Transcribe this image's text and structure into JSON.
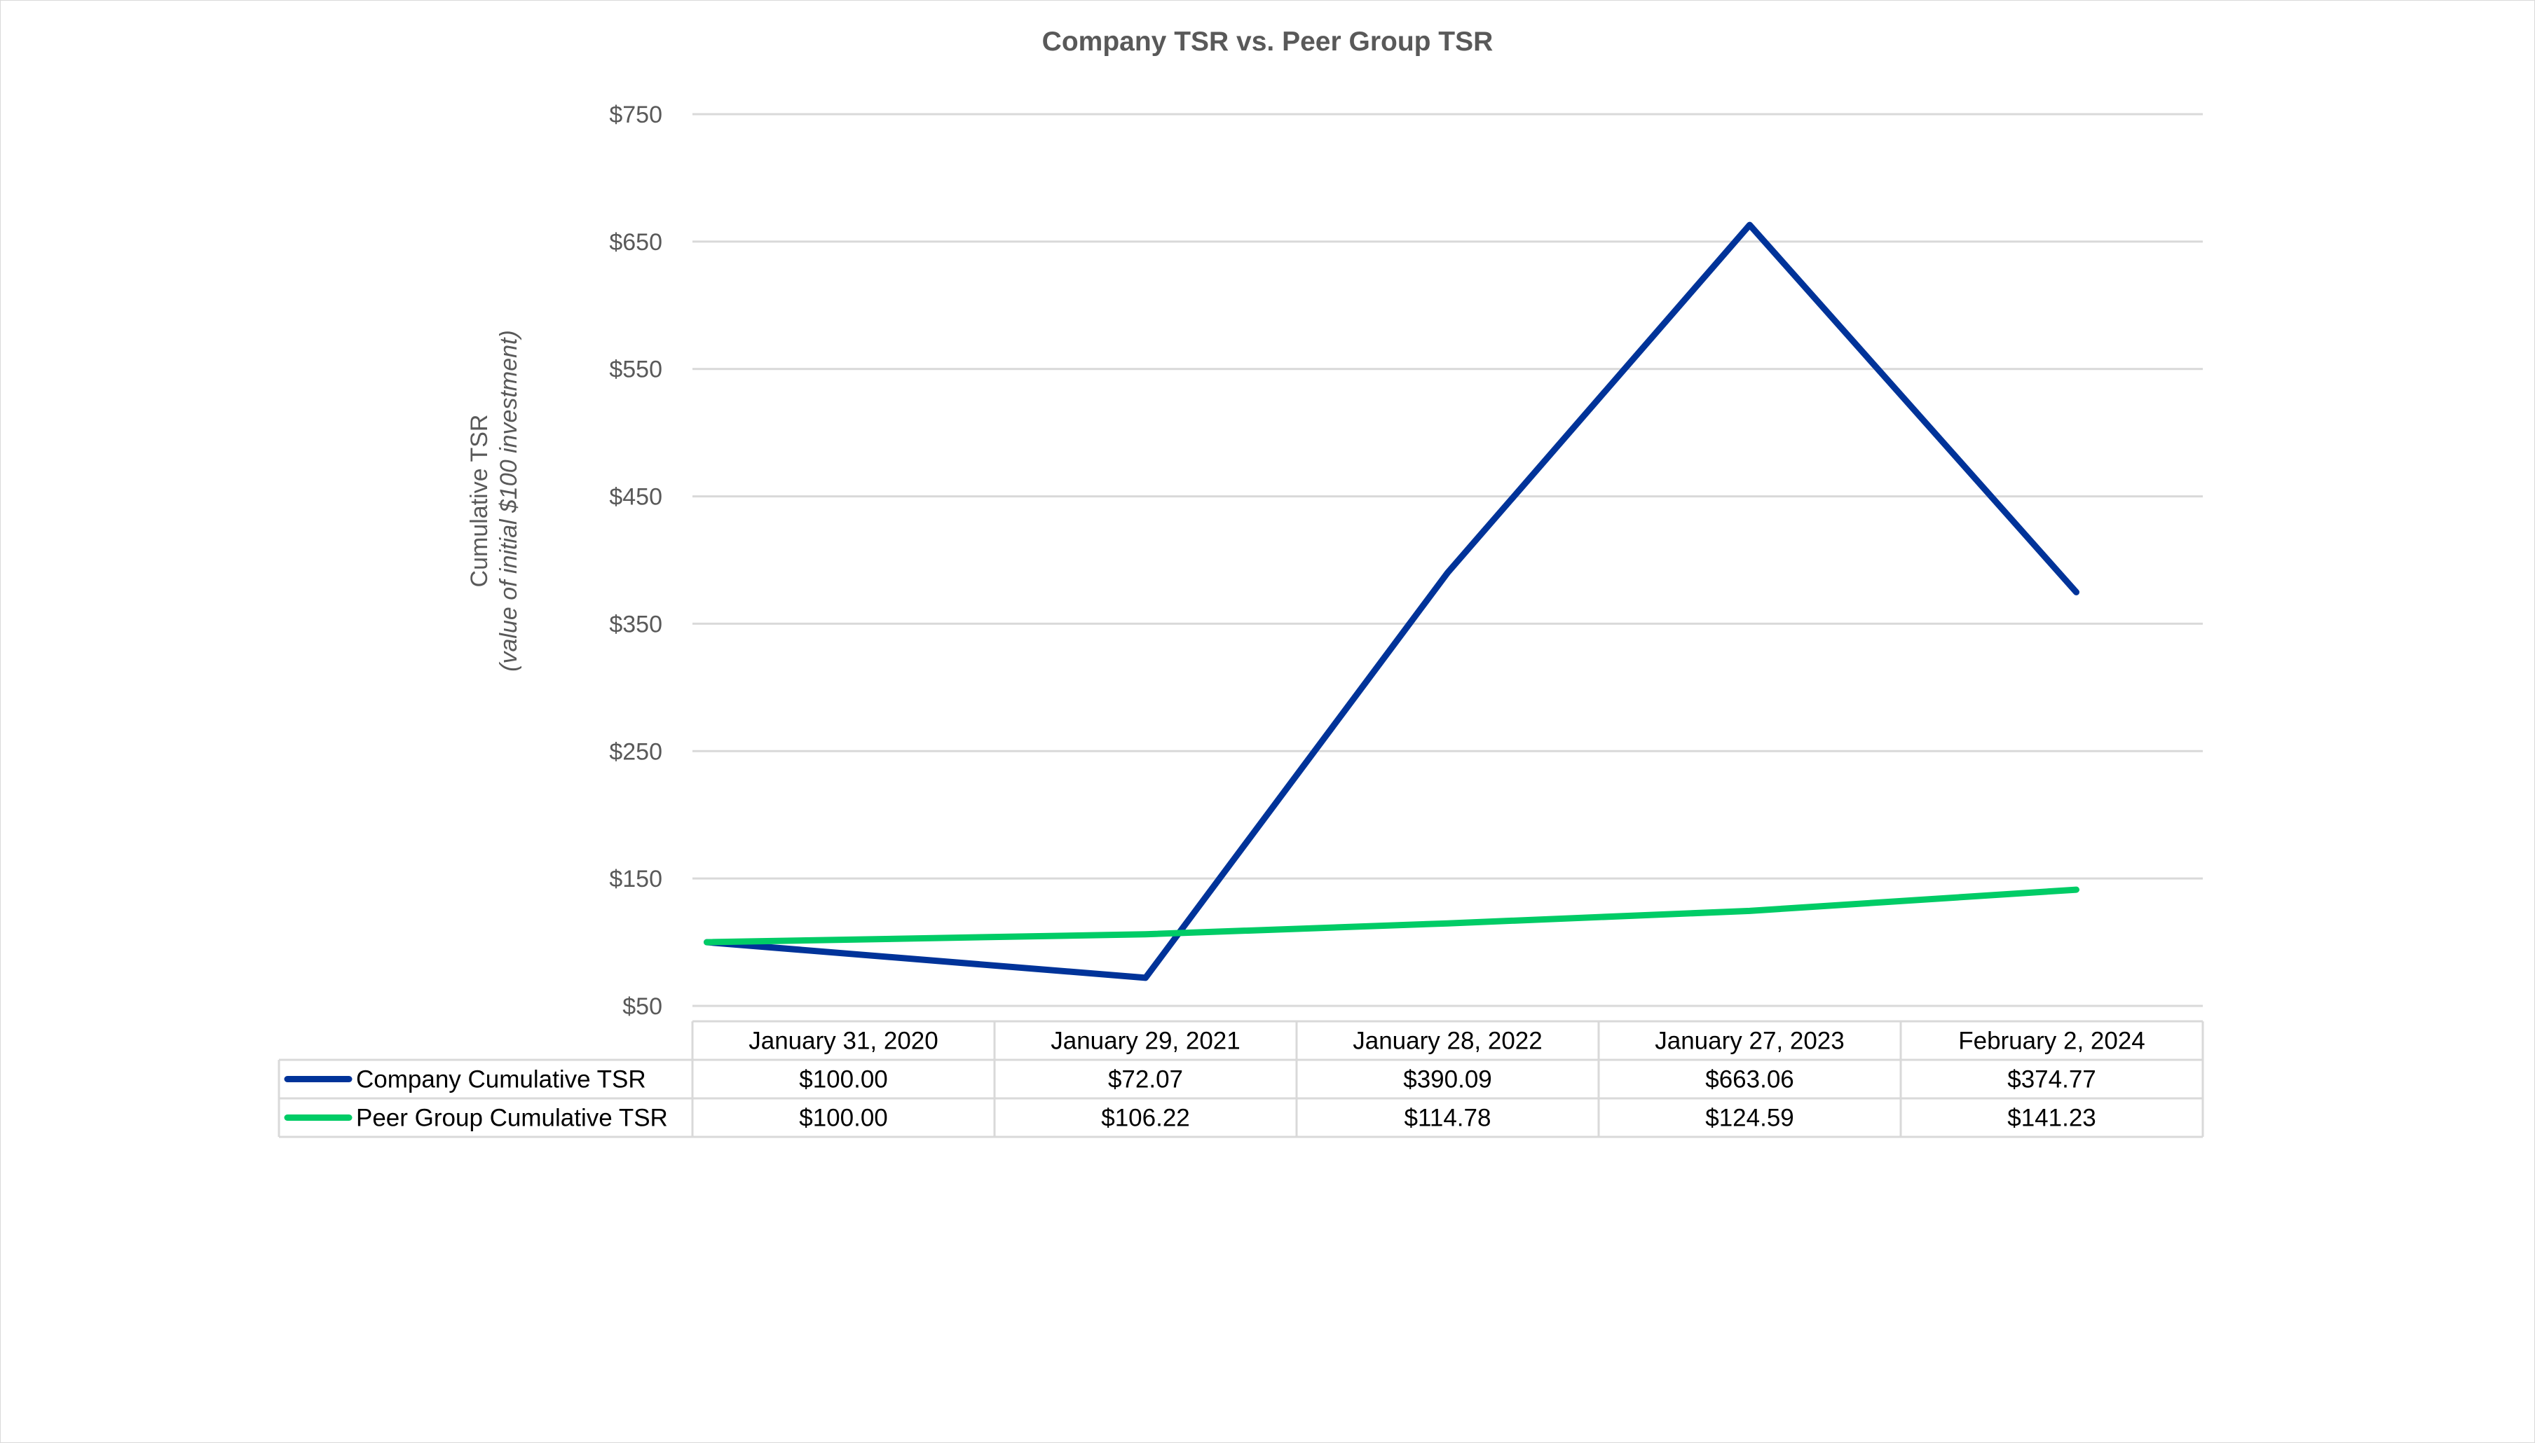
{
  "chart_data": {
    "type": "line",
    "title": "Company TSR vs. Peer Group TSR",
    "ylabel": "Cumulative TSR",
    "ylabel_sub": "(value of initial $100 investment)",
    "xlabel": "",
    "categories": [
      "January 31, 2020",
      "January 29, 2021",
      "January 28, 2022",
      "January 27, 2023",
      "February 2, 2024"
    ],
    "ylim": [
      50,
      750
    ],
    "yticks": [
      50,
      150,
      250,
      350,
      450,
      550,
      650,
      750
    ],
    "ytick_labels": [
      "$50",
      "$150",
      "$250",
      "$350",
      "$450",
      "$550",
      "$650",
      "$750"
    ],
    "grid": true,
    "legend": "data-table",
    "series": [
      {
        "name": "Company Cumulative TSR",
        "color": "#003399",
        "values": [
          100.0,
          72.07,
          390.09,
          663.06,
          374.77
        ],
        "labels": [
          "$100.00",
          "$72.07",
          "$390.09",
          "$663.06",
          "$374.77"
        ]
      },
      {
        "name": "Peer Group Cumulative TSR",
        "color": "#00cc66",
        "values": [
          100.0,
          106.22,
          114.78,
          124.59,
          141.23
        ],
        "labels": [
          "$100.00",
          "$106.22",
          "$114.78",
          "$124.59",
          "$141.23"
        ]
      }
    ]
  }
}
